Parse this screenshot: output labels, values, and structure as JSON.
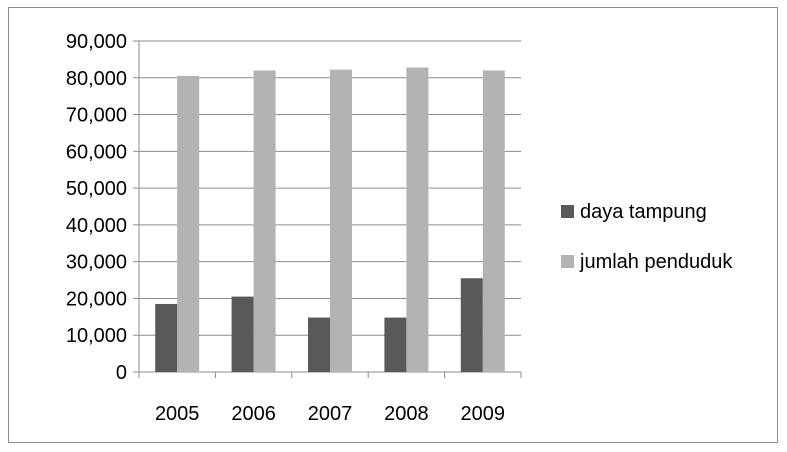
{
  "chart_data": {
    "type": "bar",
    "title": "",
    "xlabel": "",
    "ylabel": "",
    "categories": [
      "2005",
      "2006",
      "2007",
      "2008",
      "2009"
    ],
    "series": [
      {
        "name": "daya tampung",
        "color": "#595959",
        "values": [
          18500,
          20500,
          14800,
          14800,
          25500
        ]
      },
      {
        "name": "jumlah penduduk",
        "color": "#b3b3b3",
        "values": [
          80500,
          82000,
          82200,
          82800,
          82000
        ]
      }
    ],
    "ylim": [
      0,
      90000
    ],
    "ytick_step": 10000,
    "ytick_labels": [
      "0",
      "10,000",
      "20,000",
      "30,000",
      "40,000",
      "50,000",
      "60,000",
      "70,000",
      "80,000",
      "90,000"
    ],
    "grid": true,
    "legend_position": "right"
  }
}
